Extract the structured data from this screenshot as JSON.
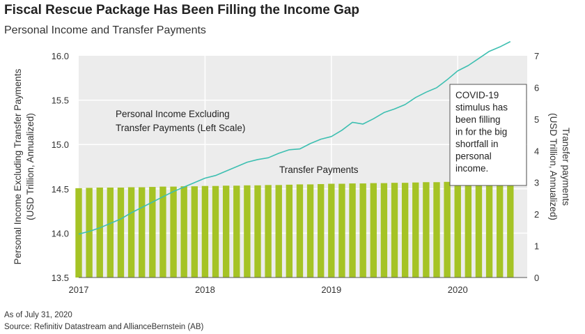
{
  "header": {
    "title": "Fiscal Rescue Package Has Been Filling the Income Gap",
    "subtitle": "Personal Income and Transfer Payments"
  },
  "footer": {
    "date_note": "As of July 31, 2020",
    "source": "Source: Refinitiv Datastream and AllianceBernstein (AB)"
  },
  "colors": {
    "bar": "#a5c325",
    "line": "#3dbfb1",
    "plot_bg": "#ececec",
    "gridline": "#ffffff"
  },
  "chart_data": {
    "type": "bar+line",
    "title": "Fiscal Rescue Package Has Been Filling the Income Gap",
    "subtitle": "Personal Income and Transfer Payments",
    "y_left_label_lines": [
      "Personal Income Excluding Transfer Payments",
      "(USD Trillion, Annualized)"
    ],
    "y_right_label_lines": [
      "Transfer payments",
      "(USD Trillion, Annualized)"
    ],
    "y_left_lim": [
      13.5,
      16.0
    ],
    "y_left_ticks": [
      "13.5",
      "14.0",
      "14.5",
      "15.0",
      "15.5",
      "16.0"
    ],
    "y_right_lim": [
      0,
      7
    ],
    "y_right_ticks": [
      "0",
      "1",
      "2",
      "3",
      "4",
      "5",
      "6",
      "7"
    ],
    "x_lim": [
      2017.0,
      2020.55
    ],
    "x_ticks": [
      "2017",
      "2018",
      "2019",
      "2020"
    ],
    "grid": true,
    "series": [
      {
        "name": "Transfer Payments",
        "type": "bar",
        "axis": "right",
        "x": [
          "2017-01",
          "2017-02",
          "2017-03",
          "2017-04",
          "2017-05",
          "2017-06",
          "2017-07",
          "2017-08",
          "2017-09",
          "2017-10",
          "2017-11",
          "2017-12",
          "2018-01",
          "2018-02",
          "2018-03",
          "2018-04",
          "2018-05",
          "2018-06",
          "2018-07",
          "2018-08",
          "2018-09",
          "2018-10",
          "2018-11",
          "2018-12",
          "2019-01",
          "2019-02",
          "2019-03",
          "2019-04",
          "2019-05",
          "2019-06",
          "2019-07",
          "2019-08",
          "2019-09",
          "2019-10",
          "2019-11",
          "2019-12",
          "2020-01",
          "2020-02",
          "2020-03",
          "2020-04",
          "2020-05",
          "2020-06"
        ],
        "values": [
          2.82,
          2.83,
          2.84,
          2.84,
          2.84,
          2.85,
          2.85,
          2.86,
          2.87,
          2.87,
          2.88,
          2.88,
          2.89,
          2.89,
          2.9,
          2.9,
          2.91,
          2.91,
          2.92,
          2.92,
          2.93,
          2.94,
          2.94,
          2.95,
          2.96,
          2.96,
          2.97,
          2.97,
          2.98,
          2.98,
          2.99,
          2.99,
          3.0,
          3.01,
          3.01,
          3.02,
          3.03,
          3.05,
          3.1,
          3.22,
          3.34,
          3.4
        ]
      },
      {
        "name": "Personal Income Excluding Transfer Payments (Left Scale)",
        "type": "line",
        "axis": "left",
        "x": [
          "2017-01",
          "2017-02",
          "2017-03",
          "2017-04",
          "2017-05",
          "2017-06",
          "2017-07",
          "2017-08",
          "2017-09",
          "2017-10",
          "2017-11",
          "2017-12",
          "2018-01",
          "2018-02",
          "2018-03",
          "2018-04",
          "2018-05",
          "2018-06",
          "2018-07",
          "2018-08",
          "2018-09",
          "2018-10",
          "2018-11",
          "2018-12",
          "2019-01",
          "2019-02",
          "2019-03",
          "2019-04",
          "2019-05",
          "2019-06",
          "2019-07",
          "2019-08",
          "2019-09",
          "2019-10",
          "2019-11",
          "2019-12",
          "2020-01",
          "2020-02",
          "2020-03",
          "2020-04",
          "2020-05",
          "2020-06"
        ],
        "values": [
          13.99,
          14.02,
          14.06,
          14.11,
          14.16,
          14.23,
          14.29,
          14.35,
          14.41,
          14.47,
          14.52,
          14.57,
          14.62,
          14.65,
          14.7,
          14.75,
          14.8,
          14.83,
          14.85,
          14.9,
          14.94,
          14.95,
          15.01,
          15.06,
          15.09,
          15.16,
          15.25,
          15.23,
          15.29,
          15.36,
          15.4,
          15.45,
          15.53,
          15.59,
          15.64,
          15.73,
          15.83,
          15.89,
          15.97,
          16.05,
          16.1,
          16.16
        ],
        "x_plotted_actual": [
          "2017-01",
          "2017-02",
          "2017-03",
          "2017-04",
          "2017-05",
          "2017-06",
          "2017-07",
          "2017-08",
          "2017-09",
          "2017-10",
          "2017-11",
          "2017-12",
          "2018-01",
          "2018-02",
          "2018-03",
          "2018-04",
          "2018-05",
          "2018-06",
          "2018-07",
          "2018-08",
          "2018-09",
          "2018-10",
          "2018-11",
          "2018-12",
          "2019-01",
          "2019-02",
          "2019-03",
          "2019-04",
          "2019-05",
          "2019-06",
          "2019-07",
          "2019-08",
          "2019-09",
          "2019-10",
          "2019-11",
          "2019-12",
          "2020-01",
          "2020-02",
          "2020-03",
          "2020-04",
          "2020-05",
          "2020-06"
        ],
        "y_plotted_actual": [
          13.99,
          14.02,
          14.06,
          14.11,
          14.16,
          14.23,
          14.29,
          14.35,
          14.41,
          14.47,
          14.52,
          14.57,
          14.62,
          14.65,
          14.7,
          14.75,
          14.8,
          14.83,
          14.85,
          14.9,
          14.94,
          14.95,
          15.01,
          15.06,
          15.09,
          15.16,
          15.25,
          15.23,
          15.29,
          15.36,
          15.4,
          15.45,
          15.53,
          15.59,
          15.64,
          15.73,
          15.83,
          15.89,
          15.97,
          16.05,
          16.1,
          16.16
        ]
      }
    ],
    "annotations": {
      "line_label_lines": [
        "Personal Income Excluding",
        "Transfer Payments (Left Scale)"
      ],
      "bar_label": "Transfer Payments",
      "callout_lines": [
        "COVID-19",
        "stimulus has",
        "been filling",
        "in for the big",
        "shortfall in",
        "personal",
        "income."
      ]
    }
  }
}
